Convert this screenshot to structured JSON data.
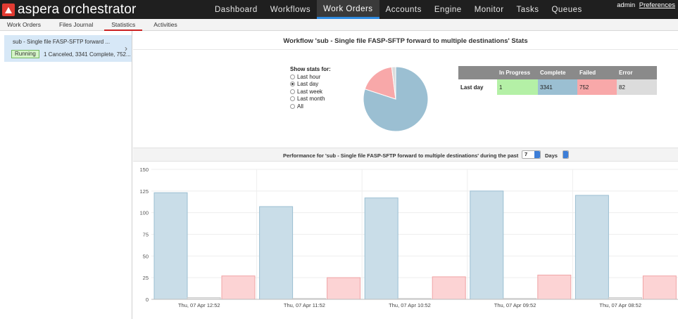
{
  "app": {
    "brand": "aspera orchestrator",
    "nav": [
      "Dashboard",
      "Workflows",
      "Work Orders",
      "Accounts",
      "Engine",
      "Monitor",
      "Tasks",
      "Queues"
    ],
    "active_nav": "Work Orders",
    "user": "admin",
    "preferences_label": "Preferences"
  },
  "subnav": {
    "items": [
      "Work Orders",
      "Files Journal",
      "Statistics",
      "Activities"
    ],
    "active": "Statistics"
  },
  "sidebar": {
    "workflow": {
      "name": "sub - Single file FASP-SFTP forward ...",
      "status": "Running",
      "summary": "1 Canceled, 3341 Complete, 752..."
    }
  },
  "stats": {
    "title": "Workflow 'sub - Single file FASP-SFTP forward to multiple destinations' Stats",
    "show_stats_label": "Show stats for:",
    "periods": [
      "Last hour",
      "Last day",
      "Last week",
      "Last month",
      "All"
    ],
    "selected_period": "Last day",
    "table": {
      "headers": [
        "",
        "In Progress",
        "Complete",
        "Failed",
        "Error"
      ],
      "row_label": "Last day",
      "values": [
        "1",
        "3341",
        "752",
        "82"
      ]
    },
    "pie": {
      "slices": [
        {
          "label": "In Progress",
          "value": 1,
          "color": "#b4f0a6"
        },
        {
          "label": "Complete",
          "value": 3341,
          "color": "#9bbfd2"
        },
        {
          "label": "Failed",
          "value": 752,
          "color": "#f8a8a9"
        },
        {
          "label": "Error",
          "value": 82,
          "color": "#dcdcdc"
        }
      ]
    }
  },
  "performance": {
    "title": "Performance for 'sub - Single file FASP-SFTP forward to multiple destinations' during the past",
    "period_value": "7",
    "unit_value": "Days"
  },
  "chart_data": {
    "type": "bar",
    "categories": [
      "Thu, 07 Apr 12:52",
      "Thu, 07 Apr 11:52",
      "Thu, 07 Apr 10:52",
      "Thu, 07 Apr 09:52",
      "Thu, 07 Apr 08:52"
    ],
    "series": [
      {
        "values": [
          123,
          107,
          117,
          125,
          120
        ],
        "color": "#c9dde8",
        "stroke": "#9bbfd2"
      },
      {
        "values": [
          2,
          1,
          1,
          1,
          2
        ],
        "color": "#e6e6e6",
        "stroke": "#cccccc"
      },
      {
        "values": [
          27,
          25,
          26,
          28,
          27
        ],
        "color": "#fcd3d4",
        "stroke": "#f0a4a6"
      }
    ],
    "yticks": [
      0,
      25,
      50,
      75,
      100,
      125,
      150
    ],
    "ylim": [
      0,
      150
    ],
    "title": "",
    "xlabel": "",
    "ylabel": ""
  }
}
